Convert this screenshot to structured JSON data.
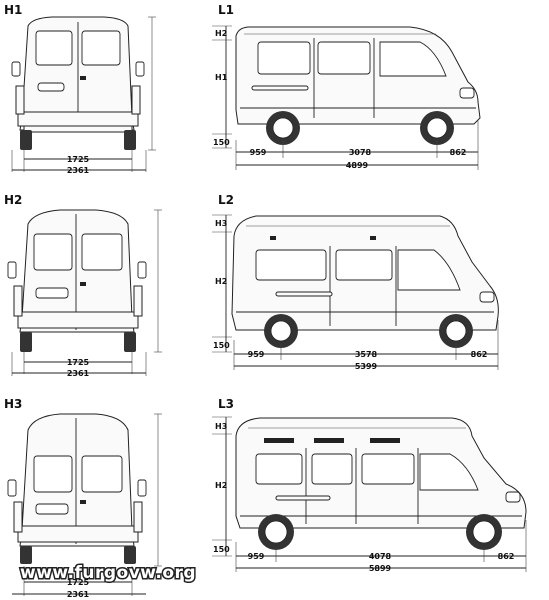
{
  "rows": [
    {
      "front_label": "H1",
      "side_label": "L1",
      "front": {
        "inner_width": "1725",
        "outer_width": "2361"
      },
      "side": {
        "height_upper": "H2",
        "height_main": "H1",
        "ground": "150",
        "front_overhang": "959",
        "wheelbase": "3078",
        "rear_overhang": "862",
        "total_length": "4899"
      }
    },
    {
      "front_label": "H2",
      "side_label": "L2",
      "front": {
        "inner_width": "1725",
        "outer_width": "2361"
      },
      "side": {
        "height_upper": "H3",
        "height_main": "H2",
        "ground": "150",
        "front_overhang": "959",
        "wheelbase": "3578",
        "rear_overhang": "862",
        "total_length": "5399"
      }
    },
    {
      "front_label": "H3",
      "side_label": "L3",
      "front": {
        "inner_width": "1725",
        "outer_width": "2361"
      },
      "side": {
        "height_upper": "H3",
        "height_main": "H2",
        "ground": "150",
        "front_overhang": "959",
        "wheelbase": "4078",
        "rear_overhang": "862",
        "total_length": "5899"
      }
    }
  ],
  "watermark": "www.furgovw.org"
}
